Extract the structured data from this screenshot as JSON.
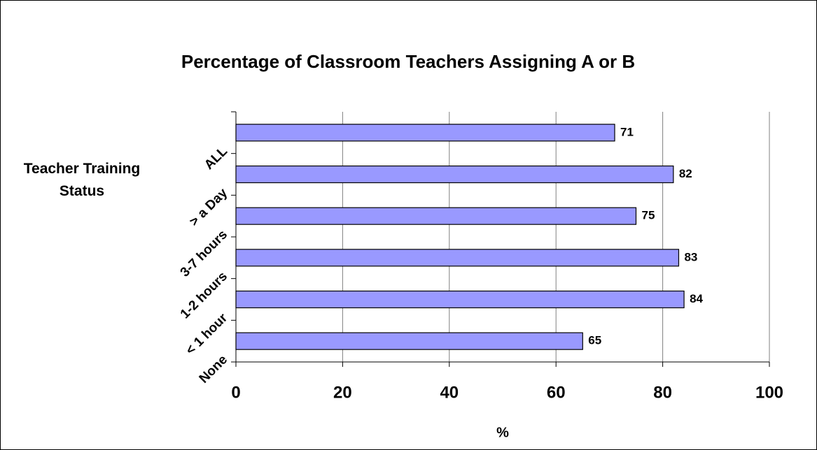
{
  "chart_data": {
    "type": "hbar",
    "title": "Percentage of Classroom Teachers Assigning A or B",
    "categories": [
      "ALL",
      "> a Day",
      "3-7 hours",
      "1-2 hours",
      "< 1 hour",
      "None"
    ],
    "values": [
      71,
      82,
      75,
      83,
      84,
      65
    ],
    "color": "#9999ff",
    "xlim": [
      0,
      100
    ],
    "xticks": [
      0,
      20,
      40,
      60,
      80,
      100
    ],
    "grid": true,
    "x_label": "%",
    "y_label": "Teacher Training Status"
  }
}
